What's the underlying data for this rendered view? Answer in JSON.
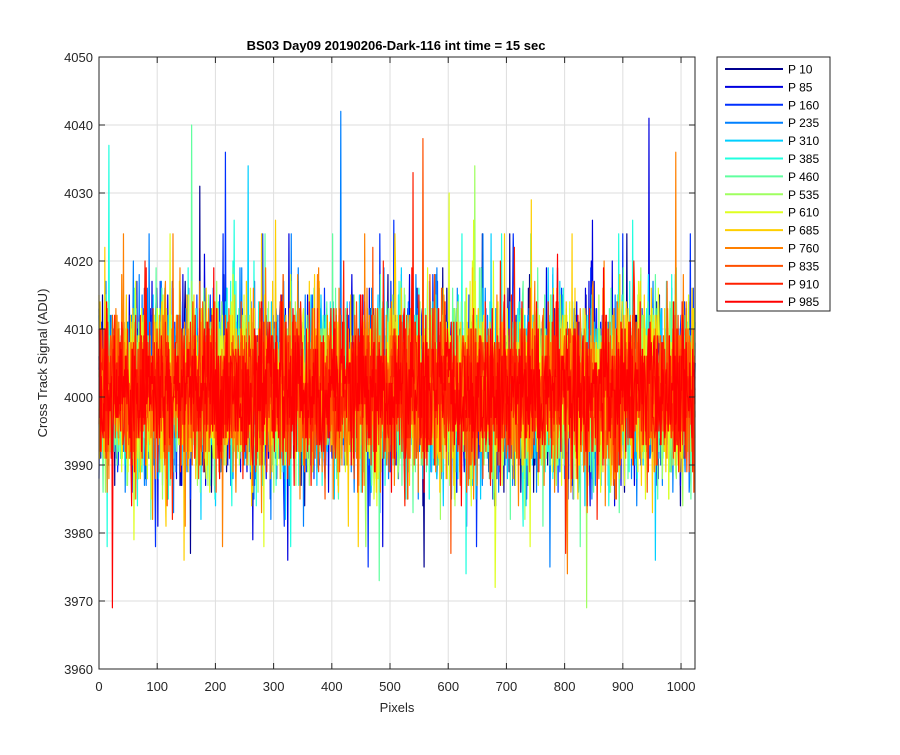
{
  "chart_data": {
    "type": "line",
    "title": "BS03 Day09 20190206-Dark-116 int time = 15 sec",
    "xlabel": "Pixels",
    "ylabel": "Cross Track Signal (ADU)",
    "xlim": [
      0,
      1024
    ],
    "ylim": [
      3960,
      4050
    ],
    "xticks": [
      0,
      100,
      200,
      300,
      400,
      500,
      600,
      700,
      800,
      900,
      1000
    ],
    "yticks": [
      3960,
      3970,
      3980,
      3990,
      4000,
      4010,
      4020,
      4030,
      4040,
      4050
    ],
    "grid": true,
    "legend_position": "outside-top-right",
    "n_points_per_series": 1024,
    "series": [
      {
        "name": "P 10",
        "color": "#00008f",
        "mean": 4001,
        "std": 6.5,
        "min": 3975,
        "max": 4031
      },
      {
        "name": "P 85",
        "color": "#0000df",
        "mean": 4001,
        "std": 6.5,
        "min": 3976,
        "max": 4041
      },
      {
        "name": "P 160",
        "color": "#0030ff",
        "mean": 4001,
        "std": 6.5,
        "min": 3975,
        "max": 4036
      },
      {
        "name": "P 235",
        "color": "#0080ff",
        "mean": 4001,
        "std": 6.5,
        "min": 3975,
        "max": 4042
      },
      {
        "name": "P 310",
        "color": "#00cfff",
        "mean": 4001,
        "std": 6.5,
        "min": 3976,
        "max": 4034
      },
      {
        "name": "P 385",
        "color": "#20ffdf",
        "mean": 4001,
        "std": 6.5,
        "min": 3974,
        "max": 4037
      },
      {
        "name": "P 460",
        "color": "#60ff9f",
        "mean": 4001,
        "std": 6.5,
        "min": 3973,
        "max": 4040
      },
      {
        "name": "P 535",
        "color": "#9fff60",
        "mean": 4001,
        "std": 6.5,
        "min": 3969,
        "max": 4034
      },
      {
        "name": "P 610",
        "color": "#dfff20",
        "mean": 4001,
        "std": 6.5,
        "min": 3972,
        "max": 4030
      },
      {
        "name": "P 685",
        "color": "#ffcf00",
        "mean": 4001,
        "std": 6.5,
        "min": 3976,
        "max": 4029
      },
      {
        "name": "P 760",
        "color": "#ff8000",
        "mean": 4001,
        "std": 6.5,
        "min": 3974,
        "max": 4036
      },
      {
        "name": "P 835",
        "color": "#ff5000",
        "mean": 4001,
        "std": 6.0,
        "min": 3977,
        "max": 4038
      },
      {
        "name": "P 910",
        "color": "#ff2000",
        "mean": 4001,
        "std": 5.5,
        "min": 3977,
        "max": 4033
      },
      {
        "name": "P 985",
        "color": "#ff0000",
        "mean": 4001,
        "std": 5.0,
        "min": 3969,
        "max": 4021
      }
    ]
  }
}
